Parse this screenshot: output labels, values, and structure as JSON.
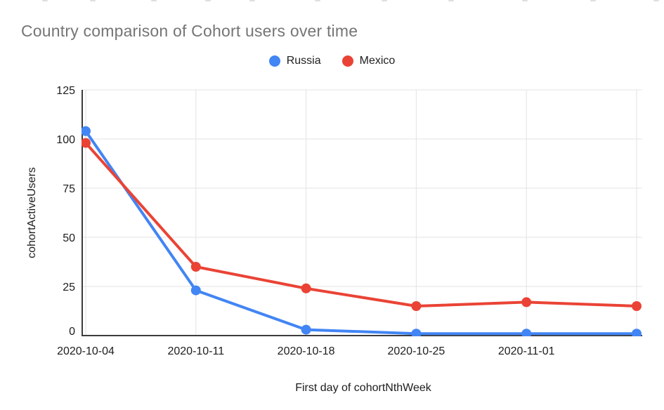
{
  "chart_data": {
    "type": "line",
    "title": "Country comparison of Cohort users over time",
    "xlabel": "First day of cohortNthWeek",
    "ylabel": "cohortActiveUsers",
    "categories": [
      "2020-10-04",
      "2020-10-11",
      "2020-10-18",
      "2020-10-25",
      "2020-11-01",
      ""
    ],
    "series": [
      {
        "name": "Russia",
        "color": "#4285F4",
        "values": [
          104,
          23,
          3,
          1,
          1,
          1
        ]
      },
      {
        "name": "Mexico",
        "color": "#EA4335",
        "values": [
          98,
          35,
          24,
          15,
          17,
          15
        ]
      }
    ],
    "ylim": [
      0,
      125
    ],
    "yticks": [
      0,
      25,
      50,
      75,
      100,
      125
    ],
    "grid": true,
    "legend_position": "top",
    "colors": {
      "title_text": "#757575",
      "tick_text": "#1d1d1d",
      "legend_text": "#212121",
      "gridline": "#e3e3e3",
      "axis_line": "#3c3c3c",
      "background": "#ffffff"
    }
  }
}
